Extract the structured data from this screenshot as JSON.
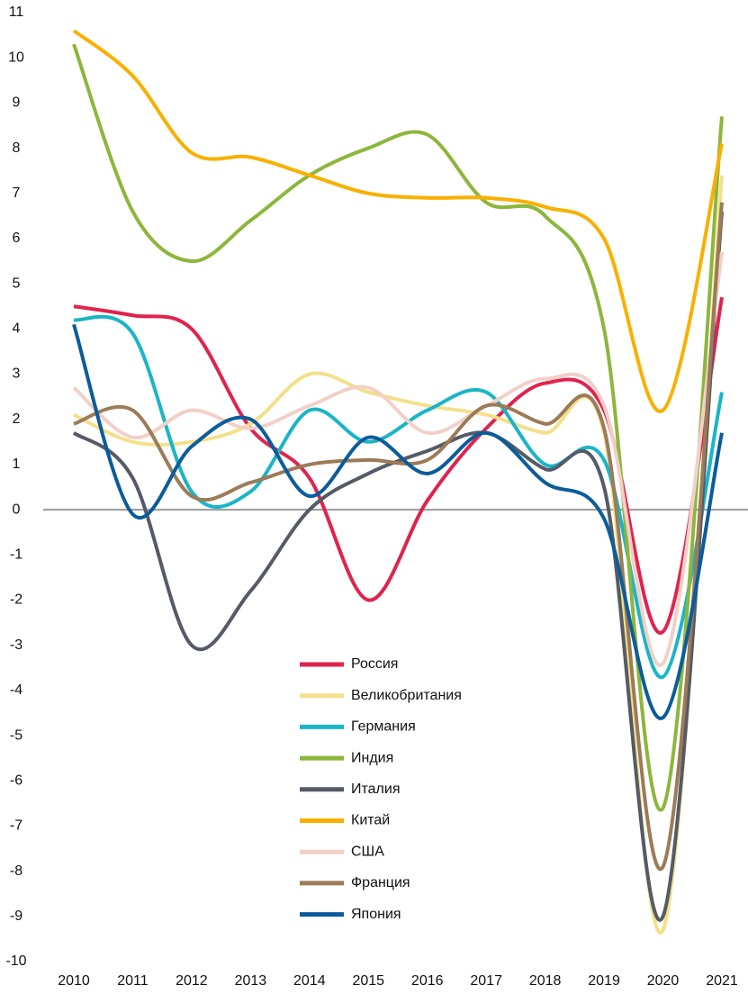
{
  "chart_data": {
    "type": "line",
    "smooth": true,
    "categories": [
      "2010",
      "2011",
      "2012",
      "2013",
      "2014",
      "2015",
      "2016",
      "2017",
      "2018",
      "2019",
      "2020",
      "2021"
    ],
    "ylim": [
      -10,
      11
    ],
    "yticks": [
      -10,
      -9,
      -8,
      -7,
      -6,
      -5,
      -4,
      -3,
      -2,
      -1,
      0,
      1,
      2,
      3,
      4,
      5,
      6,
      7,
      8,
      9,
      10,
      11
    ],
    "series": [
      {
        "name": "Россия",
        "color": "#e0234e",
        "values": [
          4.5,
          4.3,
          4.0,
          1.8,
          0.7,
          -2.0,
          0.2,
          1.8,
          2.8,
          2.2,
          -2.7,
          4.7
        ]
      },
      {
        "name": "Великобритания",
        "color": "#f3e08a",
        "values": [
          2.1,
          1.5,
          1.5,
          1.9,
          3.0,
          2.6,
          2.3,
          2.1,
          1.7,
          1.7,
          -9.3,
          7.4
        ]
      },
      {
        "name": "Германия",
        "color": "#1ab5c6",
        "values": [
          4.2,
          3.9,
          0.4,
          0.4,
          2.2,
          1.5,
          2.2,
          2.6,
          1.0,
          1.1,
          -3.7,
          2.6
        ]
      },
      {
        "name": "Индия",
        "color": "#8db63c",
        "values": [
          10.3,
          6.6,
          5.5,
          6.4,
          7.4,
          8.0,
          8.3,
          6.8,
          6.5,
          4.0,
          -6.6,
          8.7
        ]
      },
      {
        "name": "Италия",
        "color": "#555b66",
        "values": [
          1.7,
          0.7,
          -3.0,
          -1.8,
          0.0,
          0.8,
          1.3,
          1.7,
          0.9,
          0.5,
          -9.0,
          6.6
        ]
      },
      {
        "name": "Китай",
        "color": "#f9b000",
        "values": [
          10.6,
          9.6,
          7.9,
          7.8,
          7.4,
          7.0,
          6.9,
          6.9,
          6.7,
          6.0,
          2.2,
          8.1
        ]
      },
      {
        "name": "США",
        "color": "#f2d0c8",
        "values": [
          2.7,
          1.6,
          2.2,
          1.8,
          2.3,
          2.7,
          1.7,
          2.3,
          2.9,
          2.3,
          -3.4,
          5.7
        ]
      },
      {
        "name": "Франция",
        "color": "#9c7b58",
        "values": [
          1.9,
          2.2,
          0.3,
          0.6,
          1.0,
          1.1,
          1.1,
          2.3,
          1.9,
          1.8,
          -7.9,
          6.8
        ]
      },
      {
        "name": "Япония",
        "color": "#0b5c9a",
        "values": [
          4.1,
          -0.1,
          1.4,
          2.0,
          0.3,
          1.6,
          0.8,
          1.7,
          0.6,
          -0.2,
          -4.6,
          1.7
        ]
      }
    ]
  }
}
